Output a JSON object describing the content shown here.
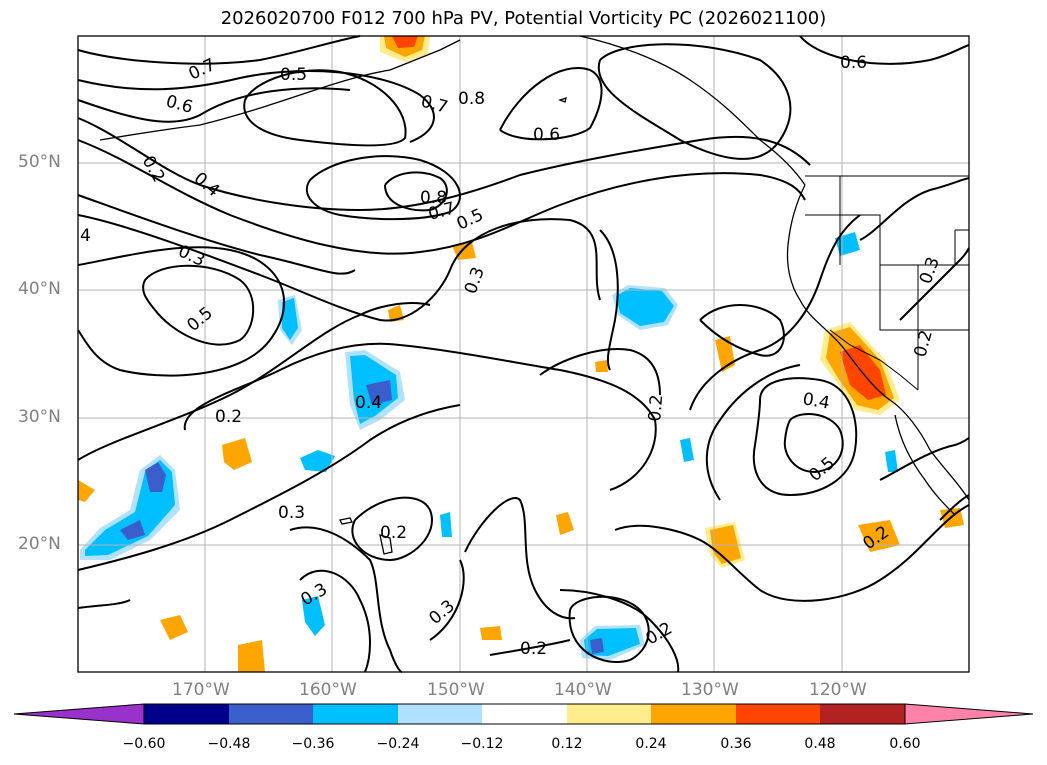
{
  "title": "2026020700 F012 700 hPa PV, Potential Vorticity PC (2026021100)",
  "map": {
    "lat_labels": [
      "50°N",
      "40°N",
      "30°N",
      "20°N"
    ],
    "lon_labels": [
      "170°W",
      "160°W",
      "150°W",
      "140°W",
      "130°W",
      "120°W"
    ],
    "lon_range": [
      -180,
      -110
    ],
    "lat_range": [
      10,
      60
    ],
    "contour_labels": [
      "0.7",
      "0.5",
      "0.6",
      "0.7",
      "0.8",
      "0.6",
      "0.6",
      "0.2",
      "0.4",
      "0.8",
      "0.7",
      "0.5",
      "4",
      "0.3",
      "0.3",
      "0.5",
      "0.3",
      "0.2",
      "0.4",
      "0.2",
      "0.4",
      "0.5",
      "0.2",
      "0.3",
      "0.2",
      "0.2",
      "0.3",
      "0.2",
      "0.3",
      "0.2"
    ]
  },
  "colorbar": {
    "ticks": [
      "−0.60",
      "−0.48",
      "−0.36",
      "−0.24",
      "−0.12",
      "0.12",
      "0.24",
      "0.36",
      "0.48",
      "0.60"
    ],
    "colors": [
      "#9932cc",
      "#00008b",
      "#3a5fcd",
      "#00bfff",
      "#b0e2ff",
      "#ffffff",
      "#ffec8b",
      "#ffa500",
      "#ff4500",
      "#b22222",
      "#ff82ab"
    ]
  }
}
